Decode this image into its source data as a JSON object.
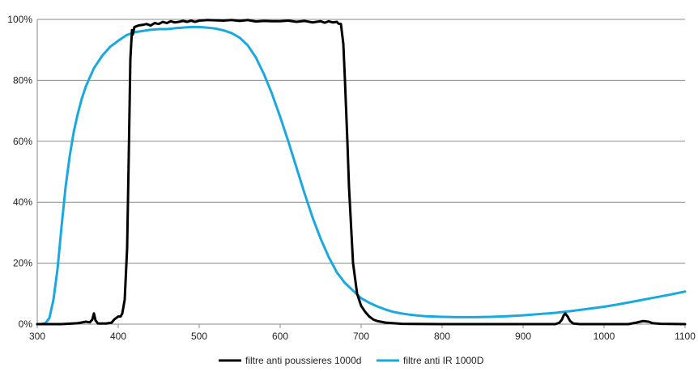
{
  "chart_data": {
    "type": "line",
    "title": "",
    "xlabel": "",
    "ylabel": "",
    "xlim": [
      300,
      1100
    ],
    "ylim": [
      0,
      100
    ],
    "x_ticks": [
      300,
      400,
      500,
      600,
      700,
      800,
      900,
      1000,
      1100
    ],
    "x_tick_labels": [
      "300",
      "400",
      "500",
      "600",
      "700",
      "800",
      "900",
      "1000",
      "1100"
    ],
    "y_ticks": [
      0,
      20,
      40,
      60,
      80,
      100
    ],
    "y_tick_labels": [
      "0%",
      "20%",
      "40%",
      "60%",
      "80%",
      "100%"
    ],
    "grid": "horizontal",
    "legend_position": "bottom",
    "series": [
      {
        "name": "filtre anti poussieres 1000d",
        "color": "#000000",
        "points": [
          [
            300,
            0
          ],
          [
            330,
            0
          ],
          [
            350,
            0.3
          ],
          [
            360,
            0.8
          ],
          [
            365,
            0.6
          ],
          [
            368,
            1.5
          ],
          [
            370,
            3.5
          ],
          [
            372,
            1.2
          ],
          [
            375,
            0.2
          ],
          [
            385,
            0.2
          ],
          [
            392,
            0.5
          ],
          [
            395,
            1.5
          ],
          [
            400,
            2.5
          ],
          [
            403,
            2.5
          ],
          [
            405,
            3.5
          ],
          [
            408,
            8
          ],
          [
            411,
            25
          ],
          [
            413,
            55
          ],
          [
            415,
            87
          ],
          [
            417,
            96.5
          ],
          [
            418,
            95
          ],
          [
            420,
            97.5
          ],
          [
            425,
            98
          ],
          [
            430,
            98.2
          ],
          [
            435,
            98.5
          ],
          [
            440,
            98
          ],
          [
            445,
            98.8
          ],
          [
            450,
            98.5
          ],
          [
            455,
            99.2
          ],
          [
            460,
            98.8
          ],
          [
            465,
            99.4
          ],
          [
            470,
            99
          ],
          [
            475,
            99.2
          ],
          [
            480,
            99.5
          ],
          [
            485,
            99.2
          ],
          [
            490,
            99.6
          ],
          [
            495,
            99.2
          ],
          [
            500,
            99.6
          ],
          [
            510,
            99.8
          ],
          [
            520,
            99.7
          ],
          [
            530,
            99.6
          ],
          [
            540,
            99.8
          ],
          [
            550,
            99.5
          ],
          [
            560,
            99.8
          ],
          [
            570,
            99.3
          ],
          [
            580,
            99.5
          ],
          [
            590,
            99.4
          ],
          [
            600,
            99.4
          ],
          [
            610,
            99.6
          ],
          [
            620,
            99.2
          ],
          [
            630,
            99.5
          ],
          [
            640,
            99
          ],
          [
            650,
            99.4
          ],
          [
            655,
            98.9
          ],
          [
            660,
            99.4
          ],
          [
            665,
            99
          ],
          [
            670,
            99.2
          ],
          [
            672,
            98.6
          ],
          [
            675,
            98.5
          ],
          [
            678,
            92
          ],
          [
            680,
            80
          ],
          [
            683,
            60
          ],
          [
            685,
            45
          ],
          [
            688,
            30
          ],
          [
            690,
            20
          ],
          [
            693,
            14
          ],
          [
            695,
            10
          ],
          [
            700,
            6
          ],
          [
            705,
            4
          ],
          [
            710,
            2.5
          ],
          [
            715,
            1.5
          ],
          [
            720,
            1
          ],
          [
            730,
            0.5
          ],
          [
            750,
            0.1
          ],
          [
            800,
            0
          ],
          [
            900,
            0
          ],
          [
            940,
            0
          ],
          [
            945,
            0.5
          ],
          [
            948,
            1.5
          ],
          [
            950,
            2.8
          ],
          [
            952,
            3.5
          ],
          [
            955,
            2.5
          ],
          [
            958,
            1
          ],
          [
            962,
            0.2
          ],
          [
            970,
            0
          ],
          [
            1030,
            0
          ],
          [
            1040,
            0.5
          ],
          [
            1048,
            1
          ],
          [
            1055,
            0.8
          ],
          [
            1060,
            0.3
          ],
          [
            1070,
            0.1
          ],
          [
            1100,
            0
          ]
        ]
      },
      {
        "name": "filtre anti IR 1000D",
        "color": "#1aa8e0",
        "points": [
          [
            300,
            0
          ],
          [
            305,
            0
          ],
          [
            310,
            0.3
          ],
          [
            315,
            2
          ],
          [
            320,
            8
          ],
          [
            325,
            18
          ],
          [
            330,
            32
          ],
          [
            335,
            45
          ],
          [
            340,
            55
          ],
          [
            345,
            63
          ],
          [
            350,
            69
          ],
          [
            355,
            74
          ],
          [
            360,
            78
          ],
          [
            370,
            84
          ],
          [
            380,
            88
          ],
          [
            390,
            91
          ],
          [
            400,
            93
          ],
          [
            410,
            94.8
          ],
          [
            420,
            95.8
          ],
          [
            430,
            96.2
          ],
          [
            440,
            96.6
          ],
          [
            450,
            96.8
          ],
          [
            460,
            96.8
          ],
          [
            470,
            97.1
          ],
          [
            480,
            97.3
          ],
          [
            490,
            97.5
          ],
          [
            500,
            97.5
          ],
          [
            510,
            97.3
          ],
          [
            520,
            97
          ],
          [
            530,
            96.4
          ],
          [
            540,
            95.5
          ],
          [
            550,
            94
          ],
          [
            560,
            91.5
          ],
          [
            570,
            87.5
          ],
          [
            580,
            82
          ],
          [
            590,
            75.5
          ],
          [
            600,
            68
          ],
          [
            610,
            60
          ],
          [
            620,
            51.5
          ],
          [
            630,
            43
          ],
          [
            640,
            35
          ],
          [
            650,
            28
          ],
          [
            660,
            22
          ],
          [
            670,
            17
          ],
          [
            680,
            13.5
          ],
          [
            690,
            11
          ],
          [
            700,
            8.5
          ],
          [
            710,
            7
          ],
          [
            720,
            5.8
          ],
          [
            730,
            4.8
          ],
          [
            740,
            4
          ],
          [
            750,
            3.5
          ],
          [
            760,
            3.1
          ],
          [
            770,
            2.8
          ],
          [
            780,
            2.6
          ],
          [
            790,
            2.5
          ],
          [
            800,
            2.4
          ],
          [
            820,
            2.3
          ],
          [
            840,
            2.3
          ],
          [
            860,
            2.4
          ],
          [
            880,
            2.6
          ],
          [
            900,
            2.9
          ],
          [
            920,
            3.3
          ],
          [
            940,
            3.7
          ],
          [
            960,
            4.3
          ],
          [
            980,
            5
          ],
          [
            1000,
            5.7
          ],
          [
            1020,
            6.6
          ],
          [
            1040,
            7.6
          ],
          [
            1060,
            8.6
          ],
          [
            1080,
            9.6
          ],
          [
            1100,
            10.7
          ]
        ]
      }
    ]
  }
}
